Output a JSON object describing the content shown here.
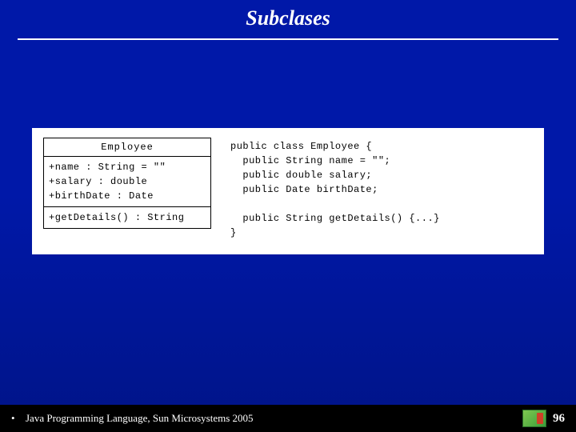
{
  "title": "Subclases",
  "uml": {
    "class_name": "Employee",
    "attributes": [
      "+name : String = \"\"",
      "+salary : double",
      "+birthDate : Date"
    ],
    "methods": [
      "+getDetails() : String"
    ]
  },
  "code_text": "public class Employee {\n  public String name = \"\";\n  public double salary;\n  public Date birthDate;\n\n  public String getDetails() {...}\n}",
  "footer": {
    "bullet": "•",
    "text": "Java Programming Language, Sun Microsystems 2005",
    "slide_number": "96"
  },
  "colors": {
    "background_top": "#0018a8",
    "background_bottom": "#001488",
    "content_bg": "#ffffff",
    "footer_bg": "#000000",
    "text_light": "#ffffff",
    "text_dark": "#000000"
  }
}
